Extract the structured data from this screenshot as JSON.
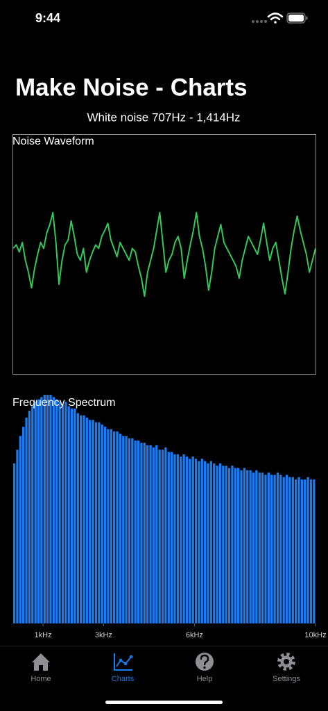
{
  "status_bar": {
    "time": "9:44"
  },
  "header": {
    "title": "Make Noise - Charts",
    "subtitle": "White noise 707Hz - 1,414Hz"
  },
  "chart_data": [
    {
      "type": "line",
      "title": "Noise Waveform",
      "color": "#34c759",
      "ylim": [
        -1,
        1
      ],
      "values": [
        0.05,
        0.08,
        0.02,
        0.1,
        -0.05,
        -0.15,
        -0.28,
        -0.12,
        0.0,
        0.1,
        0.05,
        0.18,
        0.25,
        0.35,
        0.1,
        -0.25,
        -0.05,
        0.08,
        0.12,
        0.28,
        0.15,
        0.0,
        -0.05,
        0.05,
        -0.15,
        -0.05,
        0.02,
        0.08,
        0.05,
        0.15,
        0.2,
        0.26,
        0.12,
        0.05,
        -0.02,
        0.1,
        0.05,
        0.0,
        -0.05,
        0.05,
        0.02,
        -0.1,
        -0.2,
        -0.35,
        -0.15,
        -0.05,
        0.05,
        0.2,
        0.35,
        0.1,
        -0.15,
        -0.05,
        0.0,
        0.1,
        0.15,
        0.05,
        -0.2,
        -0.05,
        0.08,
        0.2,
        0.35,
        0.15,
        0.05,
        -0.1,
        -0.3,
        -0.15,
        0.05,
        0.15,
        0.25,
        0.1,
        0.05,
        0.0,
        -0.05,
        -0.1,
        -0.2,
        -0.05,
        0.05,
        0.15,
        0.1,
        0.05,
        0.0,
        0.12,
        0.26,
        0.1,
        -0.05,
        0.05,
        0.1,
        -0.05,
        -0.2,
        -0.33,
        -0.15,
        0.05,
        0.2,
        0.32,
        0.2,
        0.1,
        0.0,
        -0.15,
        -0.05,
        0.05
      ]
    },
    {
      "type": "bar",
      "title": "Frequency Spectrum",
      "color": "#1a7cf0",
      "ylim": [
        0,
        1
      ],
      "xlim": [
        0,
        10000
      ],
      "xticks": [
        {
          "value": 1000,
          "label": "1kHz"
        },
        {
          "value": 3000,
          "label": "3kHz"
        },
        {
          "value": 6000,
          "label": "6kHz"
        },
        {
          "value": 10000,
          "label": "10kHz"
        }
      ],
      "x": [
        50,
        150,
        250,
        350,
        450,
        550,
        650,
        750,
        850,
        950,
        1050,
        1150,
        1250,
        1350,
        1450,
        1550,
        1650,
        1750,
        1850,
        1950,
        2050,
        2150,
        2250,
        2350,
        2450,
        2550,
        2650,
        2750,
        2850,
        2950,
        3050,
        3150,
        3250,
        3350,
        3450,
        3550,
        3650,
        3750,
        3850,
        3950,
        4050,
        4150,
        4250,
        4350,
        4450,
        4550,
        4650,
        4750,
        4850,
        4950,
        5050,
        5150,
        5250,
        5350,
        5450,
        5550,
        5650,
        5750,
        5850,
        5950,
        6050,
        6150,
        6250,
        6350,
        6450,
        6550,
        6650,
        6750,
        6850,
        6950,
        7050,
        7150,
        7250,
        7350,
        7450,
        7550,
        7650,
        7750,
        7850,
        7950,
        8050,
        8150,
        8250,
        8350,
        8450,
        8550,
        8650,
        8750,
        8850,
        8950,
        9050,
        9150,
        9250,
        9350,
        9450,
        9550,
        9650,
        9750,
        9850,
        9950
      ],
      "values": [
        0.7,
        0.76,
        0.82,
        0.86,
        0.9,
        0.93,
        0.95,
        0.97,
        0.98,
        0.99,
        1.0,
        1.0,
        1.0,
        0.99,
        0.98,
        0.97,
        0.96,
        0.97,
        0.95,
        0.94,
        0.94,
        0.92,
        0.91,
        0.91,
        0.9,
        0.89,
        0.89,
        0.88,
        0.88,
        0.87,
        0.86,
        0.85,
        0.85,
        0.84,
        0.84,
        0.83,
        0.82,
        0.82,
        0.81,
        0.81,
        0.8,
        0.8,
        0.79,
        0.79,
        0.78,
        0.78,
        0.77,
        0.78,
        0.76,
        0.76,
        0.77,
        0.75,
        0.75,
        0.74,
        0.74,
        0.73,
        0.74,
        0.73,
        0.72,
        0.73,
        0.72,
        0.71,
        0.72,
        0.71,
        0.7,
        0.71,
        0.7,
        0.69,
        0.7,
        0.69,
        0.69,
        0.68,
        0.69,
        0.68,
        0.68,
        0.67,
        0.68,
        0.67,
        0.67,
        0.66,
        0.67,
        0.66,
        0.66,
        0.65,
        0.66,
        0.65,
        0.65,
        0.66,
        0.65,
        0.64,
        0.65,
        0.64,
        0.64,
        0.63,
        0.64,
        0.63,
        0.63,
        0.64,
        0.63,
        0.63
      ]
    }
  ],
  "tab_bar": {
    "items": [
      "Home",
      "Charts",
      "Help",
      "Settings"
    ]
  }
}
